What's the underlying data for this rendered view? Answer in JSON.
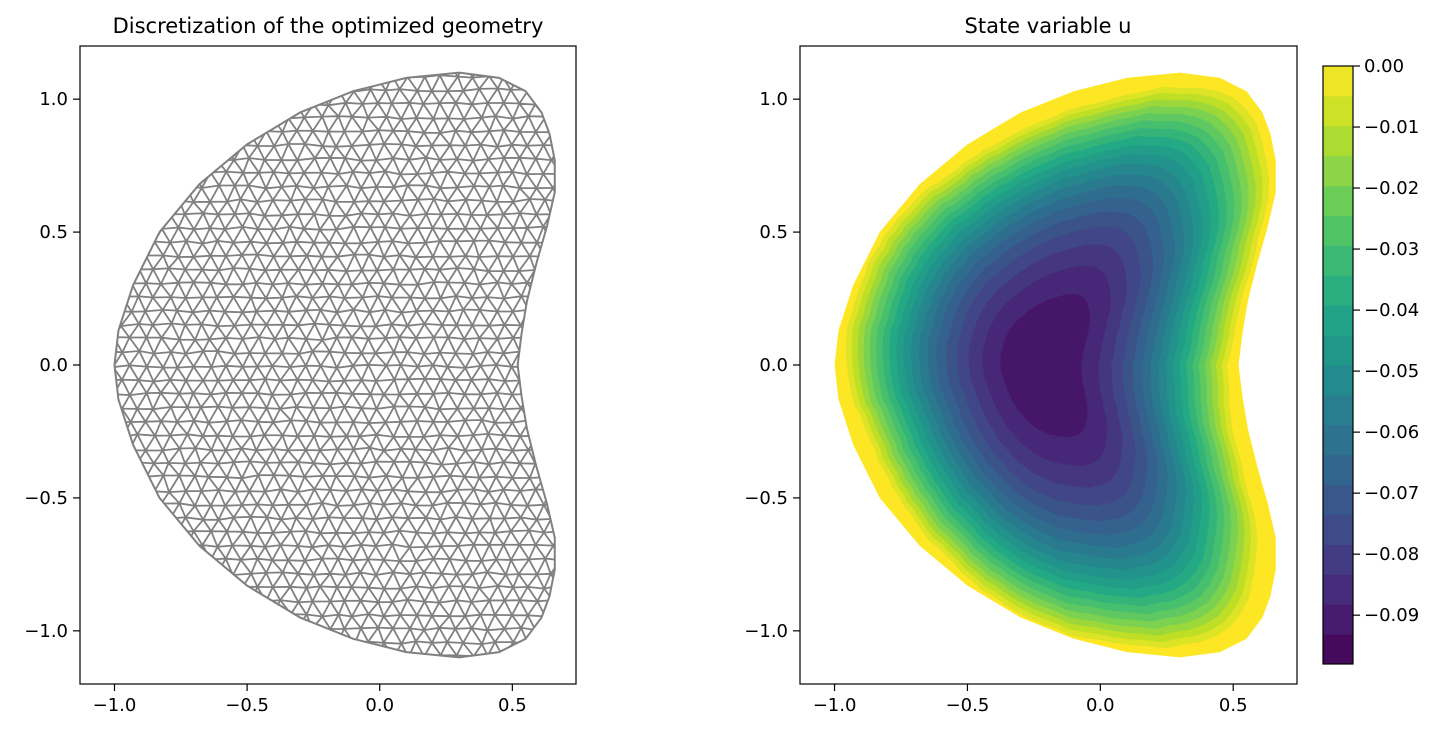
{
  "chart_data": [
    {
      "type": "mesh",
      "title": "Discretization of the optimized geometry",
      "xlabel": "",
      "ylabel": "",
      "xlim": [
        -1.13,
        0.74
      ],
      "ylim": [
        -1.2,
        1.2
      ],
      "xticks": [
        -1.0,
        -0.5,
        0.0,
        0.5
      ],
      "xtick_labels": [
        "−1.0",
        "−0.5",
        "0.0",
        "0.5"
      ],
      "yticks": [
        -1.0,
        -0.5,
        0.0,
        0.5,
        1.0
      ],
      "ytick_labels": [
        "−1.0",
        "−0.5",
        "0.0",
        "0.5",
        "1.0"
      ],
      "mesh_color": "#808080",
      "boundary": [
        [
          0.52,
          0.0
        ],
        [
          0.535,
          0.12
        ],
        [
          0.555,
          0.24
        ],
        [
          0.59,
          0.38
        ],
        [
          0.63,
          0.52
        ],
        [
          0.66,
          0.65
        ],
        [
          0.66,
          0.77
        ],
        [
          0.64,
          0.87
        ],
        [
          0.61,
          0.95
        ],
        [
          0.55,
          1.03
        ],
        [
          0.45,
          1.08
        ],
        [
          0.3,
          1.1
        ],
        [
          0.1,
          1.08
        ],
        [
          -0.1,
          1.03
        ],
        [
          -0.3,
          0.95
        ],
        [
          -0.5,
          0.83
        ],
        [
          -0.68,
          0.68
        ],
        [
          -0.83,
          0.5
        ],
        [
          -0.93,
          0.3
        ],
        [
          -0.985,
          0.13
        ],
        [
          -1.0,
          0.0
        ]
      ],
      "grid": false
    },
    {
      "type": "contourf",
      "title": "State variable u",
      "xlabel": "",
      "ylabel": "",
      "xlim": [
        -1.13,
        0.74
      ],
      "ylim": [
        -1.2,
        1.2
      ],
      "xticks": [
        -1.0,
        -0.5,
        0.0,
        0.5
      ],
      "xtick_labels": [
        "−1.0",
        "−0.5",
        "0.0",
        "0.5"
      ],
      "yticks": [
        -1.0,
        -0.5,
        0.0,
        0.5,
        1.0
      ],
      "ytick_labels": [
        "−1.0",
        "−0.5",
        "0.0",
        "0.5",
        "1.0"
      ],
      "min_value": -0.097,
      "min_location": [
        -0.22,
        0.0
      ],
      "max_value": 0.0,
      "colormap": "viridis",
      "num_levels": 20,
      "colorbar": {
        "range": [
          -0.098,
          0.0
        ],
        "ticks": [
          0.0,
          -0.01,
          -0.02,
          -0.03,
          -0.04,
          -0.05,
          -0.06,
          -0.07,
          -0.08,
          -0.09
        ],
        "tick_labels": [
          "0.00",
          "−0.01",
          "−0.02",
          "−0.03",
          "−0.04",
          "−0.05",
          "−0.06",
          "−0.07",
          "−0.08",
          "−0.09"
        ]
      },
      "grid": false
    }
  ]
}
